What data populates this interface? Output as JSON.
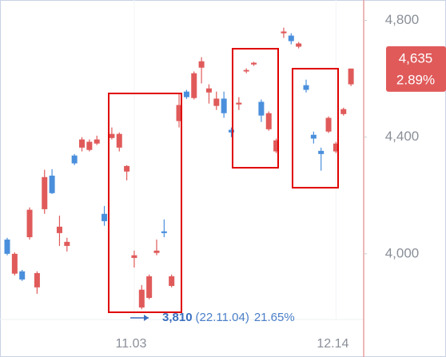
{
  "chart_data": {
    "type": "candlestick",
    "categories": [
      null,
      null,
      null,
      null,
      null,
      null,
      null,
      null,
      null,
      null,
      null,
      null,
      null,
      null,
      null,
      null,
      null,
      "11.03",
      null,
      null,
      null,
      null,
      null,
      null,
      null,
      null,
      null,
      null,
      null,
      null,
      null,
      null,
      null,
      null,
      null,
      null,
      null,
      null,
      null,
      null,
      null,
      null,
      null,
      null,
      "12.14",
      null,
      null
    ],
    "open": [
      4049,
      3932,
      3940,
      4057,
      3885,
      4153,
      4268,
      4071,
      4027,
      4337,
      4364,
      4356,
      4378,
      4137,
      4397,
      4364,
      4282,
      3986,
      3816,
      3849,
      4003,
      4077,
      3890,
      4455,
      4556,
      4534,
      4638,
      4553,
      4507,
      4532,
      4425,
      4512,
      4625,
      4649,
      4521,
      4427,
      4351,
      4756,
      4748,
      4710,
      4578,
      4408,
      4353,
      4419,
      4351,
      4479,
      4581
    ],
    "high": [
      4055,
      4005,
      3945,
      4159,
      3940,
      4288,
      4290,
      4131,
      4055,
      4342,
      4400,
      4392,
      4405,
      4164,
      4433,
      4416,
      4304,
      4011,
      3893,
      3929,
      4049,
      4118,
      3929,
      4548,
      4562,
      4625,
      4674,
      4581,
      4556,
      4556,
      4433,
      4537,
      4636,
      4658,
      4529,
      4488,
      4395,
      4775,
      4756,
      4726,
      4597,
      4419,
      4364,
      4471,
      4384,
      4501,
      4635
    ],
    "low": [
      3995,
      3926,
      3907,
      4049,
      3863,
      4137,
      4205,
      4027,
      4008,
      4304,
      4351,
      4351,
      4373,
      4096,
      4392,
      4351,
      4252,
      3953,
      3810,
      3844,
      3995,
      4057,
      3885,
      4433,
      4531,
      4529,
      4584,
      4515,
      4493,
      4466,
      4400,
      4493,
      4619,
      4644,
      4452,
      4422,
      4345,
      4740,
      4718,
      4704,
      4553,
      4378,
      4285,
      4414,
      4345,
      4474,
      4575
    ],
    "close": [
      4000,
      4000,
      3912,
      4151,
      3934,
      4263,
      4208,
      4093,
      4041,
      4310,
      4392,
      4384,
      4392,
      4112,
      4411,
      4411,
      4301,
      3995,
      3877,
      3923,
      4011,
      4071,
      3923,
      4510,
      4537,
      4619,
      4660,
      4567,
      4532,
      4482,
      4416,
      4518,
      4630,
      4655,
      4474,
      4482,
      4389,
      4762,
      4729,
      4721,
      4562,
      4395,
      4342,
      4466,
      4378,
      4496,
      4635
    ],
    "up_color": "#e05a5a",
    "down_color": "#4a8fdc",
    "ylim": [
      3775,
      4870
    ],
    "yticks": [
      {
        "value": 4000,
        "label": "4,000"
      },
      {
        "value": 4400,
        "label": "4,400"
      },
      {
        "value": 4800,
        "label": "4,800"
      }
    ],
    "last_price": {
      "value": 4635,
      "label": "4,635"
    },
    "last_change": {
      "value": 2.89,
      "label": "2.89%"
    },
    "annotation": {
      "value": 3810,
      "label": "3,810",
      "date": "(22.11.04)",
      "change": {
        "value": 21.65,
        "label": "21.65%"
      }
    }
  }
}
